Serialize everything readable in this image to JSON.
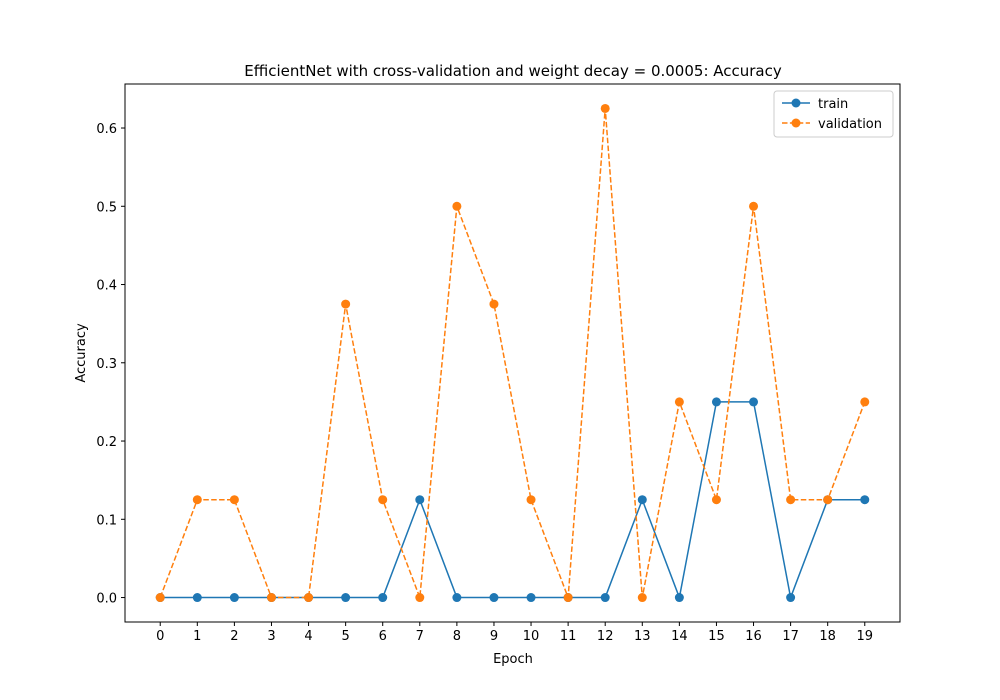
{
  "chart_data": {
    "type": "line",
    "title": "EfficientNet with cross-validation and weight decay = 0.0005: Accuracy",
    "xlabel": "Epoch",
    "ylabel": "Accuracy",
    "x": [
      0,
      1,
      2,
      3,
      4,
      5,
      6,
      7,
      8,
      9,
      10,
      11,
      12,
      13,
      14,
      15,
      16,
      17,
      18,
      19
    ],
    "xticks": [
      "0",
      "1",
      "2",
      "3",
      "4",
      "5",
      "6",
      "7",
      "8",
      "9",
      "10",
      "11",
      "12",
      "13",
      "14",
      "15",
      "16",
      "17",
      "18",
      "19"
    ],
    "yticks": [
      "0.0",
      "0.1",
      "0.2",
      "0.3",
      "0.4",
      "0.5",
      "0.6"
    ],
    "ytick_values": [
      0.0,
      0.1,
      0.2,
      0.3,
      0.4,
      0.5,
      0.6
    ],
    "xlim": [
      -0.95,
      19.95
    ],
    "ylim": [
      -0.03125,
      0.65625
    ],
    "grid": false,
    "legend_position": "top-right",
    "series": [
      {
        "name": "train",
        "color": "#1f77b4",
        "linestyle": "solid",
        "marker": "circle",
        "values": [
          0,
          0,
          0,
          0,
          0,
          0,
          0,
          0.125,
          0,
          0,
          0,
          0,
          0,
          0.125,
          0,
          0.25,
          0.25,
          0,
          0.125,
          0.125
        ]
      },
      {
        "name": "validation",
        "color": "#ff7f0e",
        "linestyle": "dashed",
        "marker": "circle",
        "values": [
          0,
          0.125,
          0.125,
          0,
          0,
          0.375,
          0.125,
          0,
          0.5,
          0.375,
          0.125,
          0,
          0.625,
          0,
          0.25,
          0.125,
          0.5,
          0.125,
          0.125,
          0.25
        ]
      }
    ]
  }
}
